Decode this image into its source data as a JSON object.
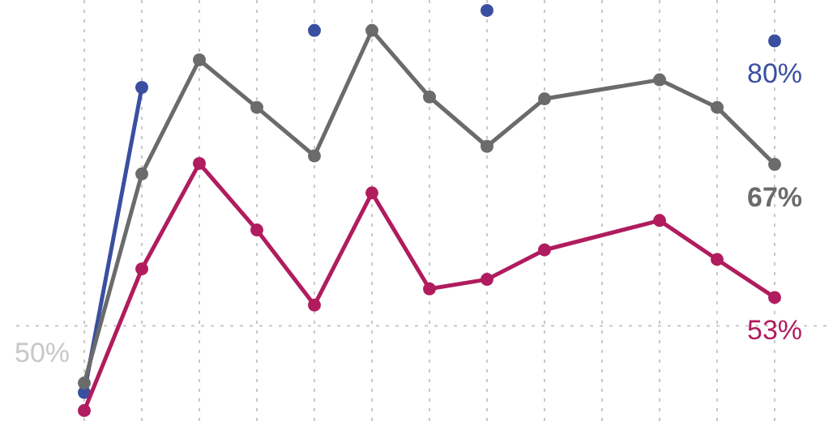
{
  "chart_data": {
    "type": "line",
    "categories": [
      null,
      null,
      null,
      null,
      null,
      null,
      null,
      null,
      null,
      null,
      null,
      null,
      null
    ],
    "ylim": [
      40,
      84.3
    ],
    "grid": "x",
    "marker": "circle",
    "ref_lines": [
      {
        "axis": "y",
        "value": 50,
        "label": "50%",
        "color": "#c8c8c8",
        "line_style": "dotted"
      }
    ],
    "series": [
      {
        "color": "#3a4fa0",
        "values": [
          43.0,
          75.1,
          null,
          null,
          81.1,
          null,
          null,
          83.2,
          null,
          null,
          null,
          null,
          80
        ],
        "value_labels": [
          null,
          null,
          null,
          null,
          null,
          null,
          null,
          null,
          null,
          null,
          null,
          null,
          "80%"
        ]
      },
      {
        "color": "#6b6b6b",
        "values": [
          44.0,
          66.0,
          78.0,
          73.0,
          67.9,
          81.1,
          74.1,
          68.9,
          73.9,
          null,
          75.9,
          73.0,
          67
        ],
        "value_labels": [
          null,
          null,
          null,
          null,
          null,
          null,
          null,
          null,
          null,
          null,
          null,
          null,
          "67%"
        ]
      },
      {
        "color": "#b01c5e",
        "values": [
          41.1,
          56.0,
          67.1,
          60.1,
          52.2,
          64.0,
          53.9,
          54.9,
          58.0,
          null,
          61.1,
          57.0,
          53
        ],
        "value_labels": [
          null,
          null,
          null,
          null,
          null,
          null,
          null,
          null,
          null,
          null,
          null,
          null,
          "53%"
        ]
      }
    ]
  }
}
